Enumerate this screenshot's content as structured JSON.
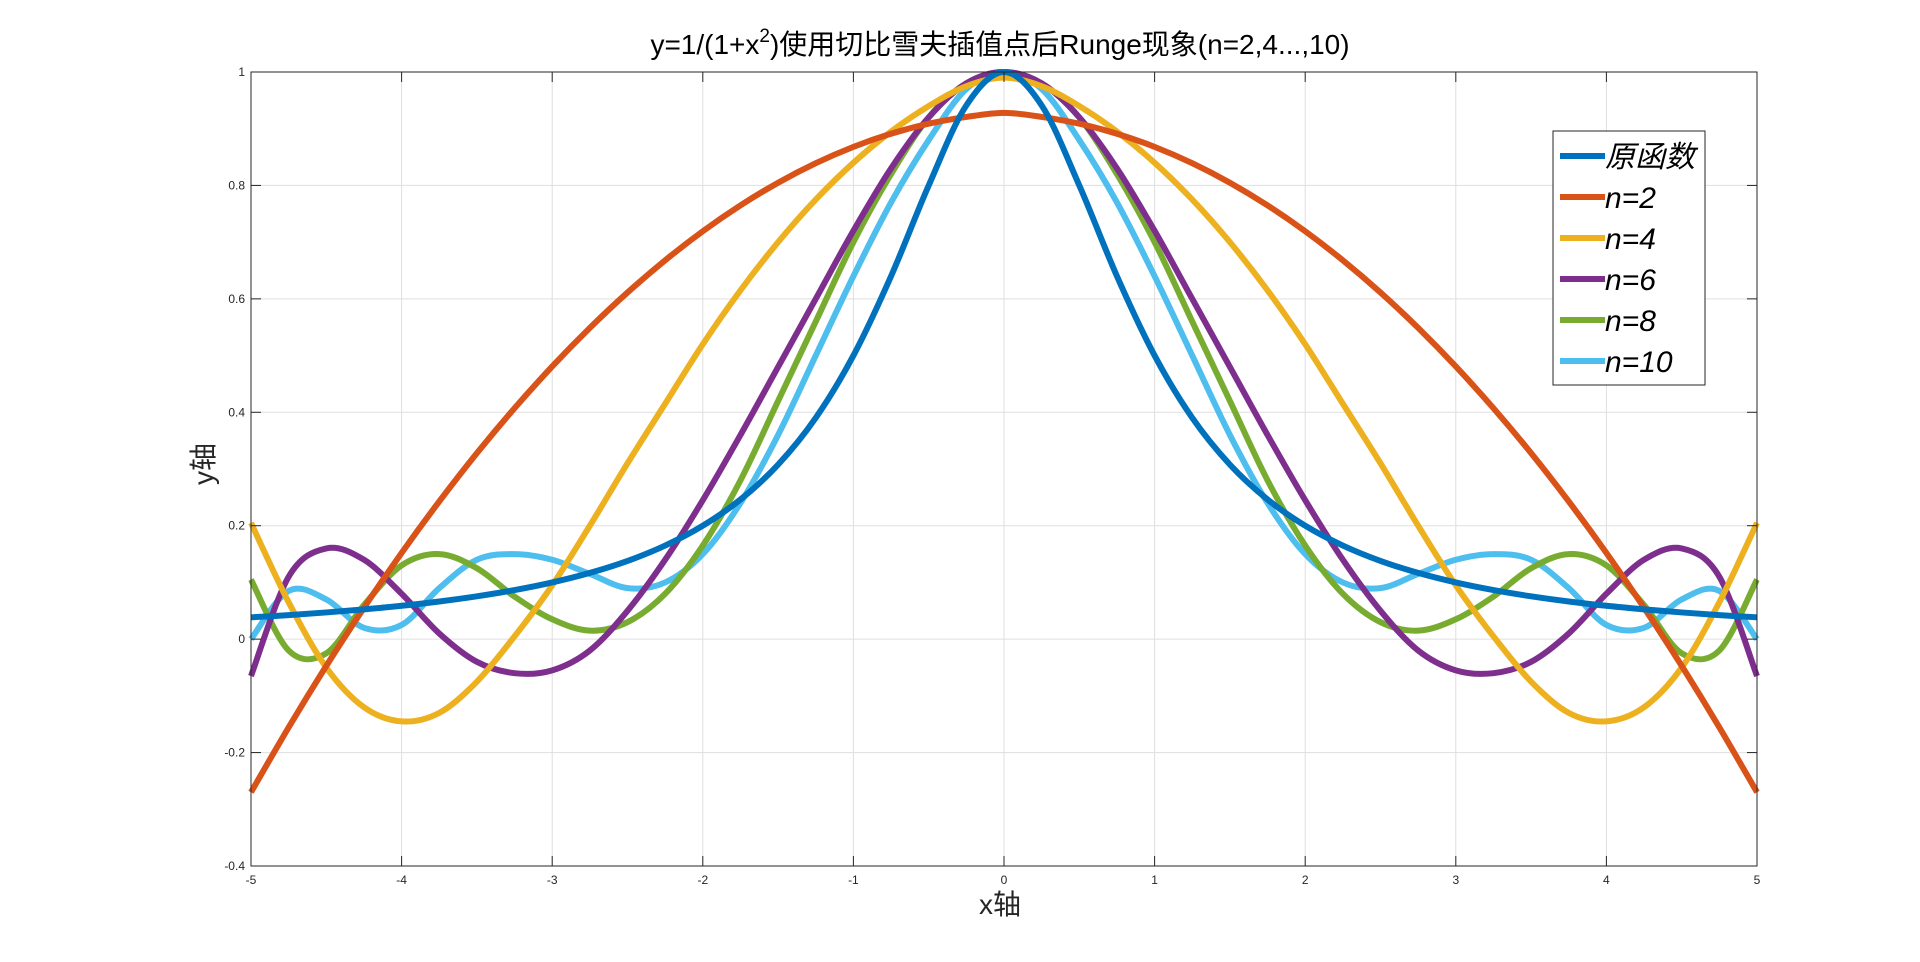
{
  "chart_data": {
    "type": "line",
    "title": {
      "prefix": "y=1/(1+x",
      "superscript": "2",
      "suffix": ")使用切比雪夫插值点后Runge现象(n=2,4...,10)"
    },
    "xlabel": "x轴",
    "ylabel": "y轴",
    "xlim": [
      -5,
      5
    ],
    "ylim": [
      -0.4,
      1
    ],
    "xticks": [
      -5,
      -4,
      -3,
      -2,
      -1,
      0,
      1,
      2,
      3,
      4,
      5
    ],
    "xtick_labels": [
      "-5",
      "-4",
      "-3",
      "-2",
      "-1",
      "0",
      "1",
      "2",
      "3",
      "4",
      "5"
    ],
    "yticks": [
      -0.4,
      -0.2,
      0,
      0.2,
      0.4,
      0.6,
      0.8,
      1
    ],
    "ytick_labels": [
      "-0.4",
      "-0.2",
      "0",
      "0.2",
      "0.4",
      "0.6",
      "0.8",
      "1"
    ],
    "grid": true,
    "legend_position": "top-right",
    "x": [
      -5,
      -4.75,
      -4.5,
      -4.25,
      -4,
      -3.75,
      -3.5,
      -3.25,
      -3,
      -2.75,
      -2.5,
      -2.25,
      -2,
      -1.75,
      -1.5,
      -1.25,
      -1,
      -0.75,
      -0.5,
      -0.25,
      0,
      0.25,
      0.5,
      0.75,
      1,
      1.25,
      1.5,
      1.75,
      2,
      2.25,
      2.5,
      2.75,
      3,
      3.25,
      3.5,
      3.75,
      4,
      4.25,
      4.5,
      4.75,
      5
    ],
    "series": [
      {
        "name": "原函数",
        "color": "#0072BD",
        "values": [
          0.0385,
          0.0424,
          0.0471,
          0.0525,
          0.0588,
          0.0664,
          0.0755,
          0.0865,
          0.1,
          0.1168,
          0.1379,
          0.165,
          0.2,
          0.2462,
          0.3077,
          0.3902,
          0.5,
          0.64,
          0.8,
          0.9412,
          1,
          0.9412,
          0.8,
          0.64,
          0.5,
          0.3902,
          0.3077,
          0.2462,
          0.2,
          0.165,
          0.1379,
          0.1168,
          0.1,
          0.0865,
          0.0755,
          0.0664,
          0.0588,
          0.0525,
          0.0471,
          0.0424,
          0.0385
        ]
      },
      {
        "name": "n=2",
        "color": "#D95319",
        "values": [
          -0.27,
          -0.1556,
          -0.0472,
          0.0552,
          0.152,
          0.2428,
          0.328,
          0.4072,
          0.4808,
          0.5488,
          0.6112,
          0.668,
          0.7192,
          0.7648,
          0.8048,
          0.8392,
          0.868,
          0.8912,
          0.9088,
          0.9208,
          0.928,
          0.9208,
          0.9088,
          0.8912,
          0.868,
          0.8392,
          0.8048,
          0.7648,
          0.7192,
          0.668,
          0.6112,
          0.5488,
          0.4808,
          0.4072,
          0.328,
          0.2428,
          0.152,
          0.0552,
          -0.0472,
          -0.1556,
          -0.27
        ]
      },
      {
        "name": "n=4",
        "color": "#EDB120",
        "values": [
          0.205,
          0.065,
          -0.05,
          -0.12,
          -0.145,
          -0.13,
          -0.075,
          0.005,
          0.095,
          0.2,
          0.31,
          0.415,
          0.52,
          0.615,
          0.7,
          0.775,
          0.84,
          0.895,
          0.94,
          0.975,
          0.99,
          0.975,
          0.94,
          0.895,
          0.84,
          0.775,
          0.7,
          0.615,
          0.52,
          0.415,
          0.31,
          0.2,
          0.095,
          0.005,
          -0.075,
          -0.13,
          -0.145,
          -0.12,
          -0.05,
          0.065,
          0.205
        ]
      },
      {
        "name": "n=6",
        "color": "#7E2F8E",
        "values": [
          -0.065,
          0.11,
          0.16,
          0.14,
          0.08,
          0.01,
          -0.04,
          -0.06,
          -0.055,
          -0.02,
          0.05,
          0.14,
          0.245,
          0.36,
          0.48,
          0.6,
          0.72,
          0.83,
          0.92,
          0.98,
          1,
          0.98,
          0.92,
          0.83,
          0.72,
          0.6,
          0.48,
          0.36,
          0.245,
          0.14,
          0.05,
          -0.02,
          -0.055,
          -0.06,
          -0.04,
          0.01,
          0.08,
          0.14,
          0.16,
          0.11,
          -0.065
        ]
      },
      {
        "name": "n=8",
        "color": "#77AC30",
        "values": [
          0.105,
          -0.02,
          -0.025,
          0.06,
          0.13,
          0.15,
          0.125,
          0.075,
          0.035,
          0.015,
          0.03,
          0.08,
          0.165,
          0.28,
          0.42,
          0.56,
          0.7,
          0.82,
          0.92,
          0.98,
          1,
          0.98,
          0.92,
          0.82,
          0.7,
          0.56,
          0.42,
          0.28,
          0.165,
          0.08,
          0.03,
          0.015,
          0.035,
          0.075,
          0.125,
          0.15,
          0.13,
          0.06,
          -0.025,
          -0.02,
          0.105
        ]
      },
      {
        "name": "n=10",
        "color": "#4DBEEE",
        "values": [
          0,
          0.085,
          0.07,
          0.02,
          0.025,
          0.09,
          0.14,
          0.15,
          0.14,
          0.115,
          0.09,
          0.1,
          0.15,
          0.24,
          0.36,
          0.5,
          0.64,
          0.77,
          0.88,
          0.97,
          1,
          0.97,
          0.88,
          0.77,
          0.64,
          0.5,
          0.36,
          0.24,
          0.15,
          0.1,
          0.09,
          0.115,
          0.14,
          0.15,
          0.14,
          0.09,
          0.025,
          0.02,
          0.07,
          0.085,
          0
        ]
      }
    ]
  }
}
